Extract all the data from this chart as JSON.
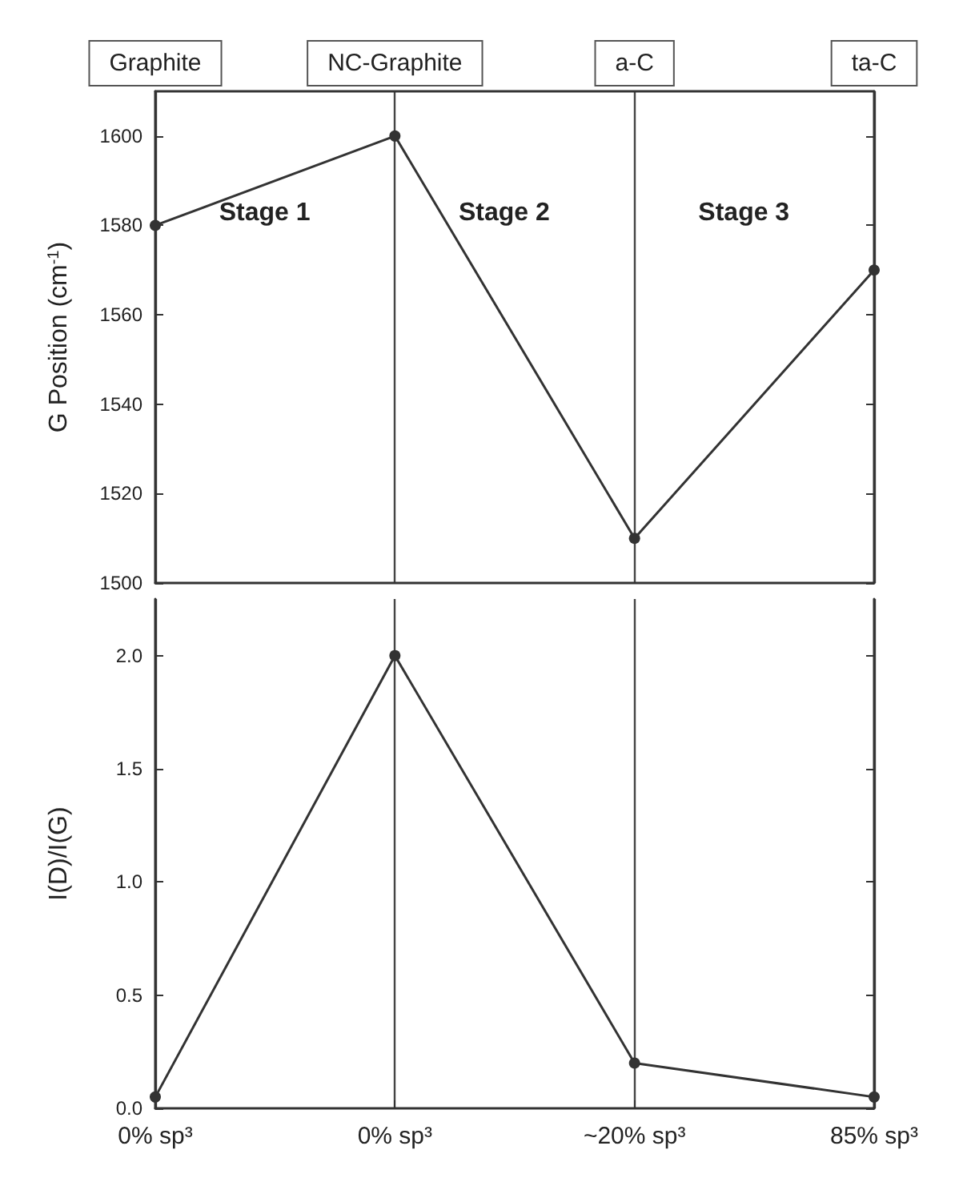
{
  "chart_data": [
    {
      "type": "line",
      "ylabel": "G Position (cm$^{-1}$)",
      "categories": [
        "Graphite",
        "NC-Graphite",
        "a-C",
        "ta-C"
      ],
      "values": [
        1580,
        1600,
        1510,
        1570
      ],
      "color": "#333333",
      "marker": "circle",
      "ylim": [
        1500,
        1610
      ],
      "yticks": [
        1500,
        1520,
        1540,
        1560,
        1580,
        1600
      ],
      "grid": "x",
      "annotations": [
        "Stage 1",
        "Stage 2",
        "Stage 3"
      ]
    },
    {
      "type": "line",
      "ylabel": "I(D)/I(G)",
      "categories": [
        "0% sp³",
        "0% sp³",
        "~20% sp³",
        "85% sp³"
      ],
      "values": [
        0.05,
        2.0,
        0.2,
        0.05
      ],
      "color": "#333333",
      "marker": "circle",
      "ylim": [
        0,
        2.25
      ],
      "yticks": [
        {
          "value": 0,
          "label": "0.0"
        },
        {
          "value": 0.5,
          "label": "0.5"
        },
        {
          "value": 1,
          "label": "1.0"
        },
        {
          "value": 1.5,
          "label": "1.5"
        },
        {
          "value": 2,
          "label": "2.0"
        }
      ],
      "grid": "x"
    }
  ]
}
